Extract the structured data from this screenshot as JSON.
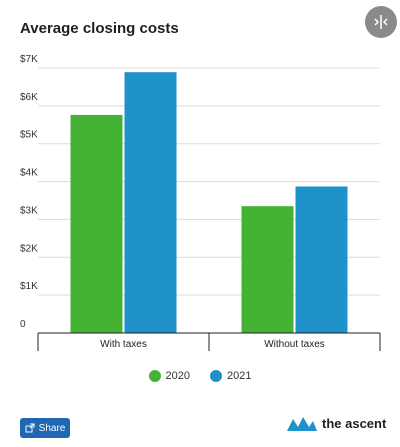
{
  "chart_data": {
    "type": "bar",
    "title": "Average closing costs",
    "categories": [
      "With taxes",
      "Without taxes"
    ],
    "series": [
      {
        "name": "2020",
        "values": [
          5760,
          3350
        ],
        "color": "#44b233"
      },
      {
        "name": "2021",
        "values": [
          6890,
          3870
        ],
        "color": "#1f92cc"
      }
    ],
    "ylim": [
      0,
      7000
    ],
    "yticks": [
      0,
      1000,
      2000,
      3000,
      4000,
      5000,
      6000,
      7000
    ],
    "ytick_labels": [
      "0",
      "$1K",
      "$2K",
      "$3K",
      "$4K",
      "$5K",
      "$6K",
      "$7K"
    ],
    "grid": true,
    "legend_position": "bottom"
  },
  "share": {
    "label": "Share",
    "icon": "share-icon"
  },
  "expand": {
    "icon": "expand-icon"
  },
  "brand": {
    "name": "the ascent",
    "icon": "ascent-logo-icon"
  }
}
